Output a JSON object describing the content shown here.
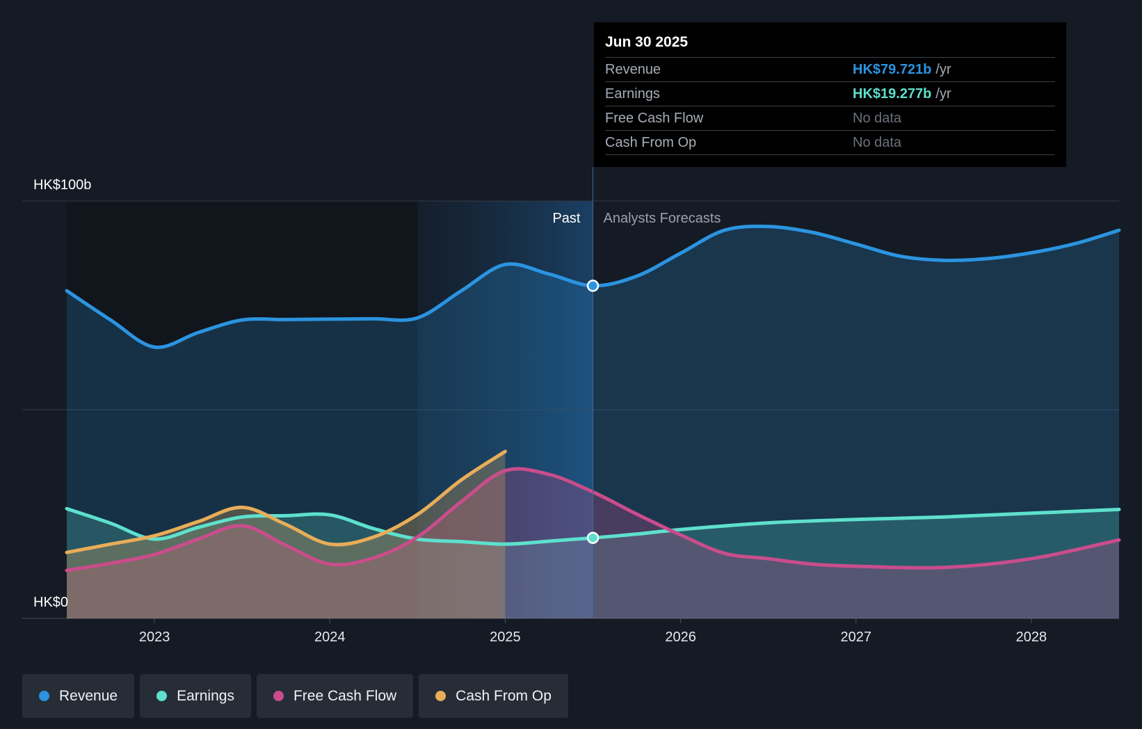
{
  "chart_data": {
    "type": "line",
    "x_ticks": [
      2023,
      2024,
      2025,
      2026,
      2027,
      2028
    ],
    "x_tick_labels": [
      "2023",
      "2024",
      "2025",
      "2026",
      "2027",
      "2028"
    ],
    "xlim": [
      2022.5,
      2028.5
    ],
    "ylim": [
      0,
      100
    ],
    "y_tick_labels": {
      "top": "HK$100b",
      "bottom": "HK$0"
    },
    "past_label": "Past",
    "forecast_label": "Analysts Forecasts",
    "divider_x": 2025.5,
    "highlight_start_x": 2024.5,
    "series": [
      {
        "name": "Revenue",
        "color": "#2b94e0",
        "fill": true,
        "points": [
          [
            2022.5,
            78.5
          ],
          [
            2022.75,
            71.5
          ],
          [
            2023.0,
            65
          ],
          [
            2023.25,
            68.5
          ],
          [
            2023.5,
            71.5
          ],
          [
            2023.75,
            71.6
          ],
          [
            2024.0,
            71.7
          ],
          [
            2024.25,
            71.8
          ],
          [
            2024.5,
            72
          ],
          [
            2024.75,
            78.5
          ],
          [
            2025.0,
            84.8
          ],
          [
            2025.25,
            82.5
          ],
          [
            2025.5,
            79.7
          ],
          [
            2025.75,
            82
          ],
          [
            2026.0,
            87.5
          ],
          [
            2026.25,
            93
          ],
          [
            2026.5,
            93.9
          ],
          [
            2026.75,
            92.5
          ],
          [
            2027.0,
            89.7
          ],
          [
            2027.25,
            86.8
          ],
          [
            2027.5,
            85.8
          ],
          [
            2027.75,
            86.2
          ],
          [
            2028.0,
            87.6
          ],
          [
            2028.25,
            89.8
          ],
          [
            2028.5,
            93
          ]
        ]
      },
      {
        "name": "Earnings",
        "color": "#5ee0cd",
        "fill": true,
        "points": [
          [
            2022.5,
            26.3
          ],
          [
            2022.75,
            22.8
          ],
          [
            2023.0,
            19
          ],
          [
            2023.25,
            21.8
          ],
          [
            2023.5,
            24.3
          ],
          [
            2023.75,
            24.6
          ],
          [
            2024.0,
            24.8
          ],
          [
            2024.25,
            21.5
          ],
          [
            2024.5,
            19
          ],
          [
            2024.75,
            18.4
          ],
          [
            2025.0,
            17.8
          ],
          [
            2025.25,
            18.5
          ],
          [
            2025.5,
            19.3
          ],
          [
            2025.75,
            20.2
          ],
          [
            2026.0,
            21.3
          ],
          [
            2026.5,
            22.9
          ],
          [
            2027.0,
            23.7
          ],
          [
            2027.5,
            24.3
          ],
          [
            2028.0,
            25.2
          ],
          [
            2028.5,
            26.1
          ]
        ]
      },
      {
        "name": "Free Cash Flow",
        "color": "#c94d8c",
        "fill": true,
        "points": [
          [
            2022.5,
            11.5
          ],
          [
            2022.75,
            13.2
          ],
          [
            2023.0,
            15.3
          ],
          [
            2023.25,
            19
          ],
          [
            2023.5,
            22.2
          ],
          [
            2023.75,
            17.5
          ],
          [
            2024.0,
            13
          ],
          [
            2024.25,
            14.5
          ],
          [
            2024.5,
            19.5
          ],
          [
            2024.75,
            28
          ],
          [
            2025.0,
            35.4
          ],
          [
            2025.25,
            34.5
          ],
          [
            2025.5,
            30.3
          ],
          [
            2025.75,
            25
          ],
          [
            2026.0,
            20
          ],
          [
            2026.25,
            15.6
          ],
          [
            2026.5,
            14.3
          ],
          [
            2026.75,
            13
          ],
          [
            2027.0,
            12.5
          ],
          [
            2027.5,
            12.2
          ],
          [
            2028.0,
            14.3
          ],
          [
            2028.5,
            18.8
          ]
        ]
      },
      {
        "name": "Cash From Op",
        "color": "#e8ad59",
        "fill": true,
        "points": [
          [
            2022.5,
            15.8
          ],
          [
            2022.75,
            17.8
          ],
          [
            2023.0,
            19.8
          ],
          [
            2023.25,
            23.2
          ],
          [
            2023.5,
            26.6
          ],
          [
            2023.75,
            22.5
          ],
          [
            2024.0,
            17.8
          ],
          [
            2024.25,
            19.5
          ],
          [
            2024.5,
            24.9
          ],
          [
            2024.75,
            33.2
          ],
          [
            2025.0,
            40
          ]
        ]
      }
    ],
    "markers": [
      {
        "series": "Revenue",
        "x": 2025.5,
        "y": 79.7
      },
      {
        "series": "Earnings",
        "x": 2025.5,
        "y": 19.3
      }
    ]
  },
  "tooltip": {
    "date": "Jun 30 2025",
    "rows": [
      {
        "name": "Revenue",
        "value": "HK$79.721b",
        "unit": "/yr",
        "color": "#2b94e0"
      },
      {
        "name": "Earnings",
        "value": "HK$19.277b",
        "unit": "/yr",
        "color": "#5ee0cd"
      },
      {
        "name": "Free Cash Flow",
        "value": "No data"
      },
      {
        "name": "Cash From Op",
        "value": "No data"
      }
    ]
  },
  "legend": [
    {
      "label": "Revenue",
      "color": "#2b94e0"
    },
    {
      "label": "Earnings",
      "color": "#5ee0cd"
    },
    {
      "label": "Free Cash Flow",
      "color": "#c94d8c"
    },
    {
      "label": "Cash From Op",
      "color": "#e8ad59"
    }
  ]
}
